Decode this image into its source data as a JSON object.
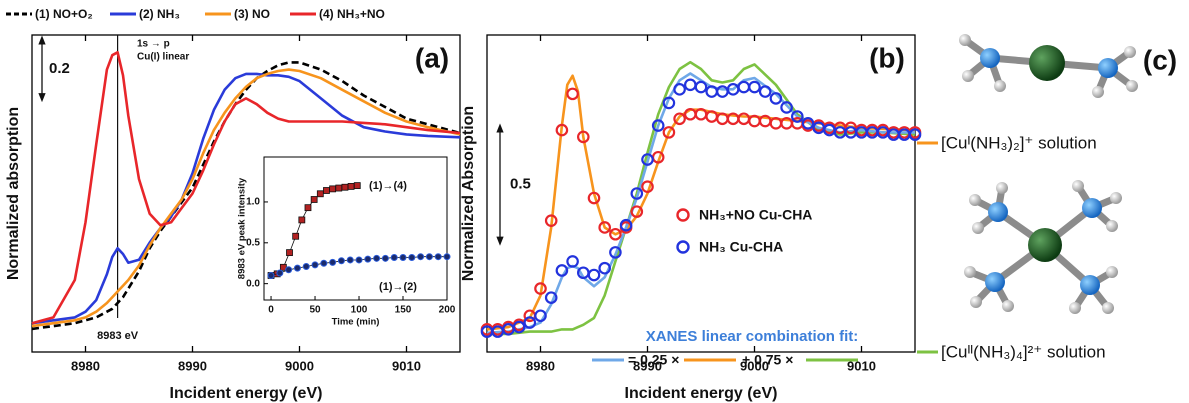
{
  "chart_data": [
    {
      "type": "line",
      "panel_label": "(a)",
      "xlabel": "Incident energy (eV)",
      "ylabel": "Normalized absorption",
      "xlim": [
        8975,
        9015
      ],
      "xticks": [
        8980,
        8990,
        9000,
        9010
      ],
      "ylim": [
        -0.1,
        1.0
      ],
      "scale_bar": 0.2,
      "vline": 8983,
      "vline_label": "8983 eV",
      "annotations": [
        "1s → p",
        "Cu(I) linear"
      ],
      "x": [
        8975,
        8977,
        8979,
        8980,
        8981,
        8982,
        8982.5,
        8983,
        8983.5,
        8984,
        8985,
        8986,
        8987,
        8988,
        8989,
        8990,
        8991,
        8992,
        8993,
        8994,
        8995,
        8996,
        8997,
        8998,
        8999,
        9000,
        9002,
        9004,
        9006,
        9008,
        9010,
        9012,
        9015
      ],
      "series": [
        {
          "name": "(1) NO+O₂",
          "color": "#000000",
          "dash": true,
          "values": [
            -0.02,
            -0.01,
            0.0,
            0.01,
            0.02,
            0.04,
            0.05,
            0.07,
            0.09,
            0.12,
            0.18,
            0.26,
            0.32,
            0.37,
            0.42,
            0.47,
            0.55,
            0.63,
            0.7,
            0.76,
            0.81,
            0.85,
            0.875,
            0.895,
            0.905,
            0.905,
            0.88,
            0.84,
            0.79,
            0.75,
            0.71,
            0.69,
            0.66
          ]
        },
        {
          "name": "(2) NH₃",
          "color": "#2a3bd9",
          "values": [
            0.0,
            0.01,
            0.02,
            0.04,
            0.08,
            0.17,
            0.23,
            0.26,
            0.24,
            0.21,
            0.22,
            0.28,
            0.33,
            0.37,
            0.43,
            0.52,
            0.64,
            0.74,
            0.81,
            0.85,
            0.865,
            0.865,
            0.86,
            0.86,
            0.855,
            0.84,
            0.78,
            0.72,
            0.68,
            0.665,
            0.655,
            0.65,
            0.645
          ]
        },
        {
          "name": "(3) NO",
          "color": "#f7941d",
          "values": [
            -0.01,
            0.0,
            0.01,
            0.02,
            0.04,
            0.07,
            0.09,
            0.11,
            0.13,
            0.15,
            0.2,
            0.27,
            0.33,
            0.38,
            0.43,
            0.5,
            0.59,
            0.67,
            0.73,
            0.78,
            0.82,
            0.85,
            0.865,
            0.875,
            0.88,
            0.875,
            0.85,
            0.81,
            0.77,
            0.73,
            0.7,
            0.68,
            0.655
          ]
        },
        {
          "name": "(4) NH₃+NO",
          "color": "#e8262a",
          "values": [
            0.0,
            0.02,
            0.15,
            0.35,
            0.62,
            0.88,
            0.93,
            0.94,
            0.86,
            0.72,
            0.5,
            0.38,
            0.34,
            0.35,
            0.4,
            0.45,
            0.53,
            0.62,
            0.7,
            0.76,
            0.78,
            0.76,
            0.73,
            0.71,
            0.7,
            0.7,
            0.7,
            0.7,
            0.695,
            0.69,
            0.68,
            0.67,
            0.66
          ]
        }
      ]
    },
    {
      "type": "scatter",
      "xlabel": "Time (min)",
      "ylabel": "8983 eV peak intensity",
      "xlim": [
        -8,
        200
      ],
      "xticks": [
        0,
        50,
        100,
        150,
        200
      ],
      "ylim": [
        -0.2,
        1.55
      ],
      "yticks": [
        {
          "value": 0,
          "label": "0.0"
        },
        {
          "value": 0.5,
          "label": "0.5"
        },
        {
          "value": 1,
          "label": "1.0"
        }
      ],
      "series": [
        {
          "name": "(1)→(4)",
          "color": "#b22222",
          "marker": "square",
          "x": [
            0,
            7,
            14,
            21,
            28,
            35,
            42,
            49,
            56,
            63,
            70,
            77,
            84,
            91,
            98
          ],
          "values": [
            0.1,
            0.12,
            0.2,
            0.38,
            0.58,
            0.78,
            0.93,
            1.03,
            1.1,
            1.14,
            1.16,
            1.17,
            1.18,
            1.19,
            1.2
          ]
        },
        {
          "name": "(1)→(2)",
          "color": "#1a2a6c",
          "marker": "circle",
          "x": [
            0,
            10,
            20,
            30,
            40,
            50,
            60,
            70,
            80,
            90,
            100,
            110,
            120,
            130,
            140,
            150,
            160,
            170,
            180,
            190,
            200
          ],
          "values": [
            0.1,
            0.13,
            0.17,
            0.19,
            0.21,
            0.23,
            0.25,
            0.26,
            0.28,
            0.29,
            0.29,
            0.3,
            0.31,
            0.31,
            0.32,
            0.32,
            0.32,
            0.33,
            0.33,
            0.33,
            0.33
          ]
        }
      ]
    },
    {
      "type": "line",
      "panel_label": "(b)",
      "xlabel": "Incident energy (eV)",
      "ylabel": "Normalized Absorption",
      "xlim": [
        8975,
        9015
      ],
      "xticks": [
        8980,
        8990,
        9000,
        9010
      ],
      "ylim": [
        -0.1,
        1.3
      ],
      "scale_bar": 0.5,
      "fit_formula": [
        "= 0.25 ×",
        "+ 0.75 ×"
      ],
      "x": [
        8975,
        8977,
        8979,
        8980,
        8981,
        8982,
        8982.5,
        8983,
        8983.5,
        8984,
        8985,
        8986,
        8987,
        8988,
        8989,
        8990,
        8991,
        8992,
        8993,
        8994,
        8995,
        8996,
        8997,
        8998,
        8999,
        9000,
        9002,
        9004,
        9006,
        9008,
        9010,
        9012,
        9015
      ],
      "series": [
        {
          "name": "[Cuᴵ(NH₃)₂]⁺ solution",
          "color": "#f7941d",
          "values": [
            0.0,
            0.01,
            0.05,
            0.15,
            0.45,
            0.9,
            1.08,
            1.12,
            1.05,
            0.85,
            0.6,
            0.45,
            0.42,
            0.44,
            0.5,
            0.6,
            0.74,
            0.87,
            0.94,
            0.97,
            0.97,
            0.96,
            0.95,
            0.945,
            0.94,
            0.94,
            0.93,
            0.92,
            0.91,
            0.9,
            0.89,
            0.885,
            0.88
          ]
        },
        {
          "name": "[Cuᴵᴵ(NH₃)₄]²⁺ solution",
          "color": "#7dc242",
          "values": [
            -0.02,
            -0.02,
            -0.01,
            -0.01,
            -0.01,
            0.0,
            0.0,
            0.0,
            0.01,
            0.02,
            0.05,
            0.15,
            0.3,
            0.45,
            0.6,
            0.78,
            0.95,
            1.07,
            1.15,
            1.18,
            1.15,
            1.1,
            1.09,
            1.1,
            1.15,
            1.17,
            1.08,
            0.95,
            0.88,
            0.86,
            0.87,
            0.87,
            0.86
          ]
        },
        {
          "name": "XANES linear combination fit:",
          "color": "#6fa8e8",
          "values": [
            -0.015,
            -0.01,
            0.01,
            0.03,
            0.11,
            0.23,
            0.27,
            0.28,
            0.27,
            0.23,
            0.19,
            0.23,
            0.33,
            0.45,
            0.58,
            0.74,
            0.9,
            1.02,
            1.1,
            1.13,
            1.1,
            1.07,
            1.06,
            1.06,
            1.1,
            1.11,
            1.04,
            0.94,
            0.89,
            0.87,
            0.88,
            0.87,
            0.87
          ]
        },
        {
          "name": "NH₃+NO Cu-CHA",
          "color": "#e8262a",
          "marker": "circle",
          "x": [
            8975,
            8976,
            8977,
            8978,
            8979,
            8980,
            8981,
            8982,
            8983,
            8984,
            8985,
            8986,
            8987,
            8988,
            8989,
            8990,
            8991,
            8992,
            8993,
            8994,
            8995,
            8996,
            8997,
            8998,
            8999,
            9000,
            9001,
            9002,
            9003,
            9004,
            9005,
            9006,
            9007,
            9008,
            9009,
            9010,
            9011,
            9012,
            9013,
            9014,
            9015
          ],
          "values": [
            0.0,
            0.0,
            0.01,
            0.02,
            0.06,
            0.18,
            0.48,
            0.88,
            1.04,
            0.85,
            0.58,
            0.45,
            0.42,
            0.45,
            0.52,
            0.63,
            0.76,
            0.87,
            0.93,
            0.95,
            0.95,
            0.94,
            0.93,
            0.93,
            0.93,
            0.92,
            0.92,
            0.91,
            0.91,
            0.91,
            0.9,
            0.9,
            0.89,
            0.89,
            0.89,
            0.88,
            0.88,
            0.88,
            0.87,
            0.87,
            0.87
          ]
        },
        {
          "name": "NH₃ Cu-CHA",
          "color": "#2233dd",
          "marker": "circle",
          "x": [
            8975,
            8976,
            8977,
            8978,
            8979,
            8980,
            8981,
            8982,
            8983,
            8984,
            8985,
            8986,
            8987,
            8988,
            8989,
            8990,
            8991,
            8992,
            8993,
            8994,
            8995,
            8996,
            8997,
            8998,
            8999,
            9000,
            9001,
            9002,
            9003,
            9004,
            9005,
            9006,
            9007,
            9008,
            9009,
            9010,
            9011,
            9012,
            9013,
            9014,
            9015
          ],
          "values": [
            -0.01,
            -0.01,
            0.0,
            0.01,
            0.03,
            0.06,
            0.14,
            0.26,
            0.3,
            0.25,
            0.24,
            0.27,
            0.34,
            0.46,
            0.6,
            0.75,
            0.9,
            1.0,
            1.06,
            1.08,
            1.07,
            1.05,
            1.05,
            1.06,
            1.07,
            1.07,
            1.05,
            1.02,
            0.98,
            0.94,
            0.91,
            0.89,
            0.88,
            0.87,
            0.87,
            0.87,
            0.87,
            0.87,
            0.86,
            0.86,
            0.86
          ]
        }
      ]
    }
  ],
  "molecules": {
    "panel_label": "(c)"
  }
}
